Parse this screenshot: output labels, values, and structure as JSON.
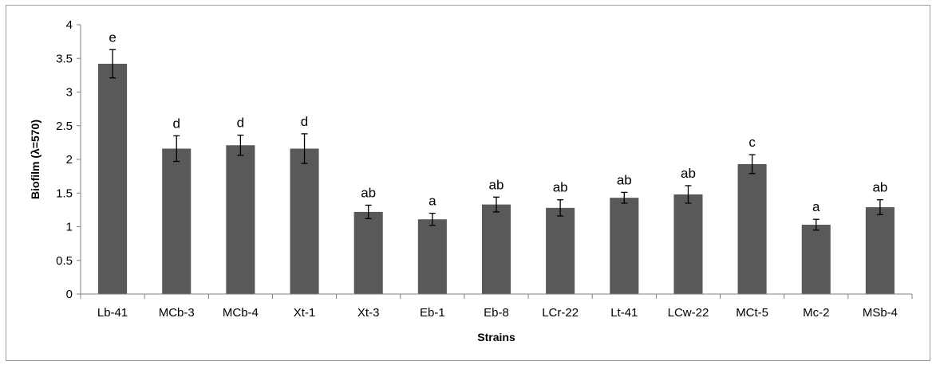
{
  "chart_data": {
    "type": "bar",
    "title": "",
    "xlabel": "Strains",
    "ylabel": "Biofilm (λ=570)",
    "ylim": [
      0,
      4
    ],
    "yticks": [
      "0",
      "0.5",
      "1",
      "1.5",
      "2",
      "2.5",
      "3",
      "3.5",
      "4"
    ],
    "grid": false,
    "legend": "none",
    "bar_color": "#595959",
    "categories": [
      "Lb-41",
      "MCb-3",
      "MCb-4",
      "Xt-1",
      "Xt-3",
      "Eb-1",
      "Eb-8",
      "LCr-22",
      "Lt-41",
      "LCw-22",
      "MCt-5",
      "Mc-2",
      "MSb-4"
    ],
    "values": [
      3.42,
      2.16,
      2.21,
      2.16,
      1.22,
      1.11,
      1.33,
      1.28,
      1.43,
      1.48,
      1.93,
      1.03,
      1.29
    ],
    "errors": [
      0.21,
      0.19,
      0.15,
      0.22,
      0.1,
      0.09,
      0.11,
      0.12,
      0.08,
      0.13,
      0.14,
      0.08,
      0.11
    ],
    "significance_letters": [
      "e",
      "d",
      "d",
      "d",
      "ab",
      "a",
      "ab",
      "ab",
      "ab",
      "ab",
      "c",
      "a",
      "ab"
    ]
  }
}
